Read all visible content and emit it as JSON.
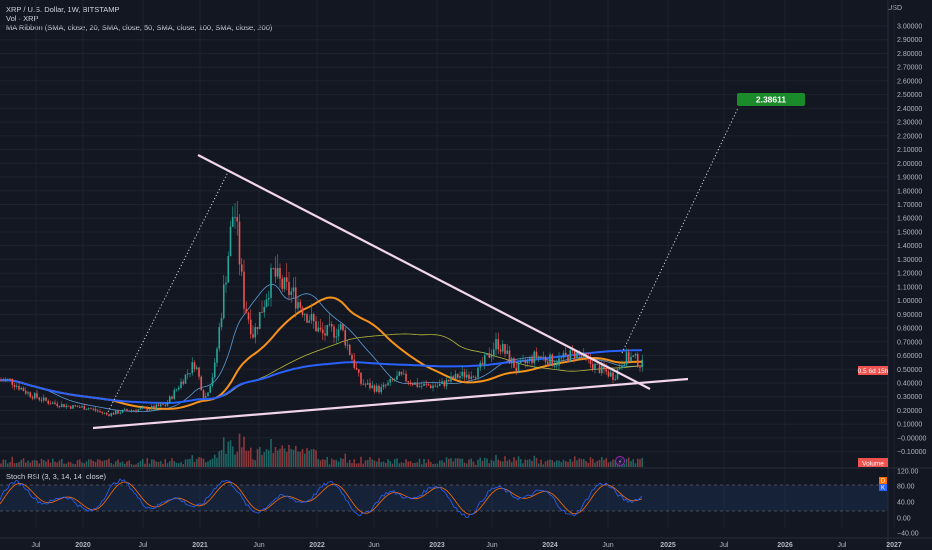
{
  "header": {
    "line1": "XRP / U.S. Dollar, 1W, BITSTAMP",
    "line2": "Vol · XRP",
    "line3": "MA Ribbon (SMA, close, 20, SMA, close, 50, SMA, close, 100, SMA, close, 200)",
    "currency": "USD"
  },
  "rsi_header": "Stoch RSI (3, 3, 14, 14, close)",
  "colors": {
    "background": "#131722",
    "grid": "#1e222d",
    "up": "#26a69a",
    "down": "#ef5350",
    "ma20": "#5b9bd5",
    "ma50": "#f7931a",
    "ma100": "#b5b83a",
    "ma200": "#2962ff",
    "trendline": "#f3d6ea",
    "target_badge": "#1b8a2a",
    "rsi_k": "#2962ff",
    "rsi_d": "#ff6d00"
  },
  "chart_data": {
    "type": "candlestick",
    "title": "XRP / U.S. Dollar, 1W, BITSTAMP",
    "y_axis_ticks": [
      "3.00000",
      "2.90000",
      "2.80000",
      "2.70000",
      "2.60000",
      "2.50000",
      "2.40000",
      "2.30000",
      "2.20000",
      "2.10000",
      "2.00000",
      "1.90000",
      "1.80000",
      "1.70000",
      "1.60000",
      "1.50000",
      "1.40000",
      "1.30000",
      "1.20000",
      "1.10000",
      "1.00000",
      "0.90000",
      "0.80000",
      "0.70000",
      "0.60000",
      "0.50000",
      "0.40000",
      "0.30000",
      "0.20000",
      "0.10000",
      "−0.00000",
      "−0.10000"
    ],
    "ylim": [
      -0.1,
      3.0
    ],
    "x_axis_ticks": [
      "Jul",
      "2020",
      "Jul",
      "2021",
      "Jun",
      "2022",
      "Jun",
      "2023",
      "Jun",
      "2024",
      "Jun",
      "2025",
      "Jul",
      "2026",
      "Jul",
      "2027"
    ],
    "current_price": {
      "value": 0.52,
      "label_value": "0.5",
      "label_time": "6d 15h"
    },
    "target": {
      "value": 2.38,
      "label": "2.38611"
    },
    "volume_label": "Volume",
    "price_path": [
      [
        "2019-05",
        0.42
      ],
      [
        "2019-07",
        0.32
      ],
      [
        "2019-09",
        0.26
      ],
      [
        "2019-11",
        0.23
      ],
      [
        "2020-01",
        0.22
      ],
      [
        "2020-03",
        0.17
      ],
      [
        "2020-05",
        0.2
      ],
      [
        "2020-07",
        0.21
      ],
      [
        "2020-09",
        0.24
      ],
      [
        "2020-11",
        0.45
      ],
      [
        "2020-12",
        0.55
      ],
      [
        "2021-01",
        0.28
      ],
      [
        "2021-02",
        0.5
      ],
      [
        "2021-04",
        1.7
      ],
      [
        "2021-05",
        1.0
      ],
      [
        "2021-06",
        0.75
      ],
      [
        "2021-08",
        1.2
      ],
      [
        "2021-09",
        1.1
      ],
      [
        "2021-10",
        1.05
      ],
      [
        "2021-11",
        0.95
      ],
      [
        "2021-12",
        0.85
      ],
      [
        "2022-01",
        0.75
      ],
      [
        "2022-03",
        0.8
      ],
      [
        "2022-05",
        0.4
      ],
      [
        "2022-07",
        0.35
      ],
      [
        "2022-09",
        0.45
      ],
      [
        "2022-11",
        0.38
      ],
      [
        "2023-01",
        0.38
      ],
      [
        "2023-03",
        0.45
      ],
      [
        "2023-05",
        0.48
      ],
      [
        "2023-07",
        0.7
      ],
      [
        "2023-09",
        0.5
      ],
      [
        "2023-11",
        0.6
      ],
      [
        "2024-01",
        0.55
      ],
      [
        "2024-03",
        0.62
      ],
      [
        "2024-05",
        0.52
      ],
      [
        "2024-07",
        0.45
      ],
      [
        "2024-08",
        0.58
      ],
      [
        "2024-09",
        0.58
      ],
      [
        "2024-10",
        0.52
      ]
    ],
    "stoch_rsi": {
      "ticks": [
        "120.00",
        "80.00",
        "40.00",
        "0.00",
        "−40.00"
      ],
      "ylim": [
        -40,
        120
      ],
      "bands": [
        80,
        20
      ],
      "k_label": "K",
      "d_label": "D"
    }
  }
}
